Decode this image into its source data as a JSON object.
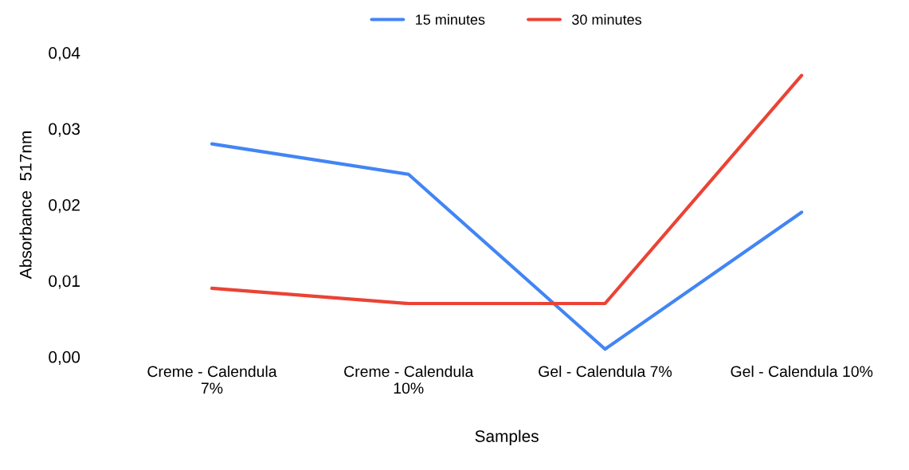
{
  "chart_data": {
    "type": "line",
    "xlabel": "Samples",
    "ylabel": "Absorbance  517nm",
    "categories": [
      "Creme - Calendula\n7%",
      "Creme - Calendula\n10%",
      "Gel - Calendula 7%",
      "Gel - Calendula 10%"
    ],
    "series": [
      {
        "name": "15 minutes",
        "color": "#4285f4",
        "values": [
          0.028,
          0.024,
          0.001,
          0.019
        ]
      },
      {
        "name": "30 minutes",
        "color": "#ea4335",
        "values": [
          0.009,
          0.007,
          0.007,
          0.037
        ]
      }
    ],
    "ylim": [
      0,
      0.04
    ],
    "yticks": [
      {
        "value": 0,
        "label": "0,00"
      },
      {
        "value": 0.01,
        "label": "0,01"
      },
      {
        "value": 0.02,
        "label": "0,02"
      },
      {
        "value": 0.03,
        "label": "0,03"
      },
      {
        "value": 0.04,
        "label": "0,04"
      }
    ],
    "grid": false,
    "legend": "top",
    "marker": "none",
    "line_style": "solid"
  }
}
